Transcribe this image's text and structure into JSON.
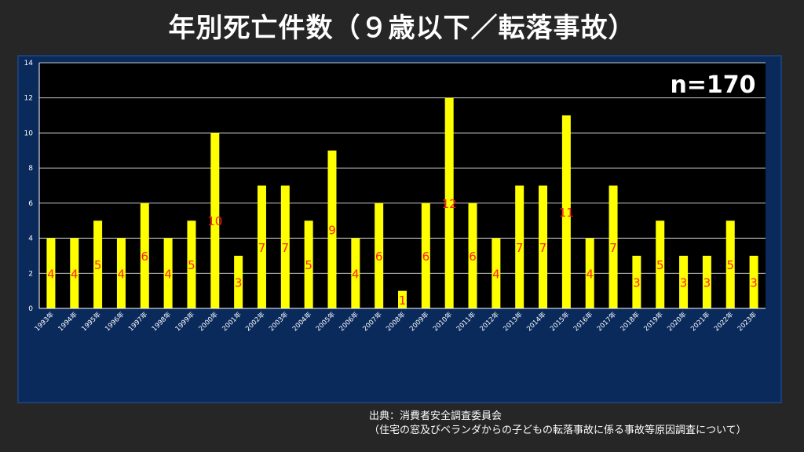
{
  "title": "年別死亡件数（９歳以下／転落事故）",
  "note": "n=170",
  "source": {
    "line1": "出典：消費者安全調査委員会",
    "line2": "（住宅の窓及びベランダからの子どもの転落事故に係る事故等原因調査について）"
  },
  "colors": {
    "bar": "#ffff00",
    "data_label": "#ff2020",
    "plot_bg": "#000000",
    "frame_bg": "#0a2a5c",
    "grid": "#ffffff"
  },
  "chart_data": {
    "type": "bar",
    "categories": [
      "1993年",
      "1994年",
      "1995年",
      "1996年",
      "1997年",
      "1998年",
      "1999年",
      "2000年",
      "2001年",
      "2002年",
      "2003年",
      "2004年",
      "2005年",
      "2006年",
      "2007年",
      "2008年",
      "2009年",
      "2010年",
      "2011年",
      "2012年",
      "2013年",
      "2014年",
      "2015年",
      "2016年",
      "2017年",
      "2018年",
      "2019年",
      "2020年",
      "2021年",
      "2022年",
      "2023年"
    ],
    "values": [
      4,
      4,
      5,
      4,
      6,
      4,
      5,
      10,
      3,
      7,
      7,
      5,
      9,
      4,
      6,
      1,
      6,
      12,
      6,
      4,
      7,
      7,
      11,
      4,
      7,
      3,
      5,
      3,
      3,
      5,
      3
    ],
    "ylim": [
      0,
      14
    ],
    "yticks": [
      0,
      2,
      4,
      6,
      8,
      10,
      12,
      14
    ],
    "grid": true,
    "data_labels": true
  }
}
